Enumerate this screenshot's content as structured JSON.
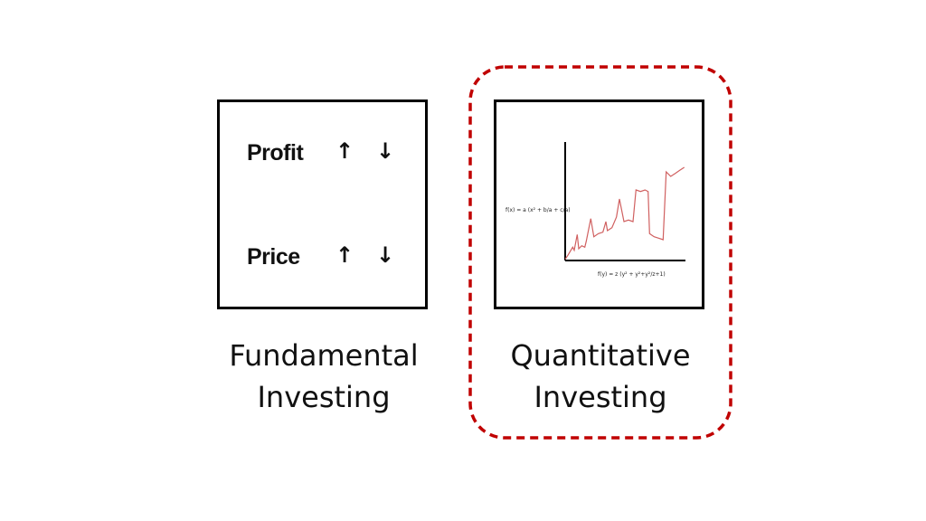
{
  "fundamental": {
    "metrics": [
      {
        "label": "Profit",
        "up_icon": "arrow-up-icon",
        "down_icon": "arrow-down-icon"
      },
      {
        "label": "Price",
        "up_icon": "arrow-up-icon",
        "down_icon": "arrow-down-icon"
      }
    ],
    "title_line1": "Fundamental",
    "title_line2": "Investing"
  },
  "quantitative": {
    "chart": {
      "y_formula": "f(x) = a (x² + b/a + c/a)",
      "x_formula": "f(y) = z (y² + y²+y²/z+1)",
      "line_color": "#d06060"
    },
    "title_line1": "Quantitative",
    "title_line2": "Investing",
    "highlight_color": "#c00000"
  },
  "arrows": {
    "up": "↑",
    "down": "↓"
  }
}
